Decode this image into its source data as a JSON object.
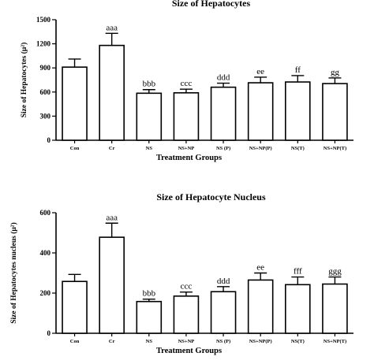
{
  "chart_data": [
    {
      "type": "bar",
      "title": "Size of Hepatocytes",
      "xlabel": "Treatment Groups",
      "ylabel": "Size of Hepatocytes (μ²)",
      "ylim": [
        0,
        1500
      ],
      "yticks": [
        0,
        300,
        600,
        900,
        1200,
        1500
      ],
      "categories": [
        "Con",
        "Cr",
        "NS",
        "NS+NP",
        "NS (P)",
        "NS+NP(P)",
        "NS(T)",
        "NS+NP(T)"
      ],
      "values": [
        910,
        1180,
        585,
        590,
        660,
        715,
        725,
        705
      ],
      "errors": [
        100,
        150,
        45,
        45,
        50,
        70,
        80,
        70
      ],
      "annotations": [
        "",
        "aaa",
        "bbb",
        "ccc",
        "ddd",
        "ee",
        "ff",
        "gg"
      ],
      "grid": false
    },
    {
      "type": "bar",
      "title": "Size of Hepatocyte Nucleus",
      "xlabel": "Treatment Groups",
      "ylabel": "Size of Hepatocytes nucleus (μ²)",
      "ylim": [
        0,
        600
      ],
      "yticks": [
        0,
        200,
        400,
        600
      ],
      "categories": [
        "Con",
        "Cr",
        "NS",
        "NS+NP",
        "NS (P)",
        "NS+NP(P)",
        "NS(T)",
        "NS+NP(T)"
      ],
      "values": [
        258,
        478,
        158,
        185,
        207,
        265,
        242,
        245
      ],
      "errors": [
        35,
        70,
        12,
        20,
        25,
        35,
        38,
        35
      ],
      "annotations": [
        "",
        "aaa",
        "bbb",
        "ccc",
        "ddd",
        "ee",
        "fff",
        "ggg"
      ],
      "grid": false
    }
  ]
}
